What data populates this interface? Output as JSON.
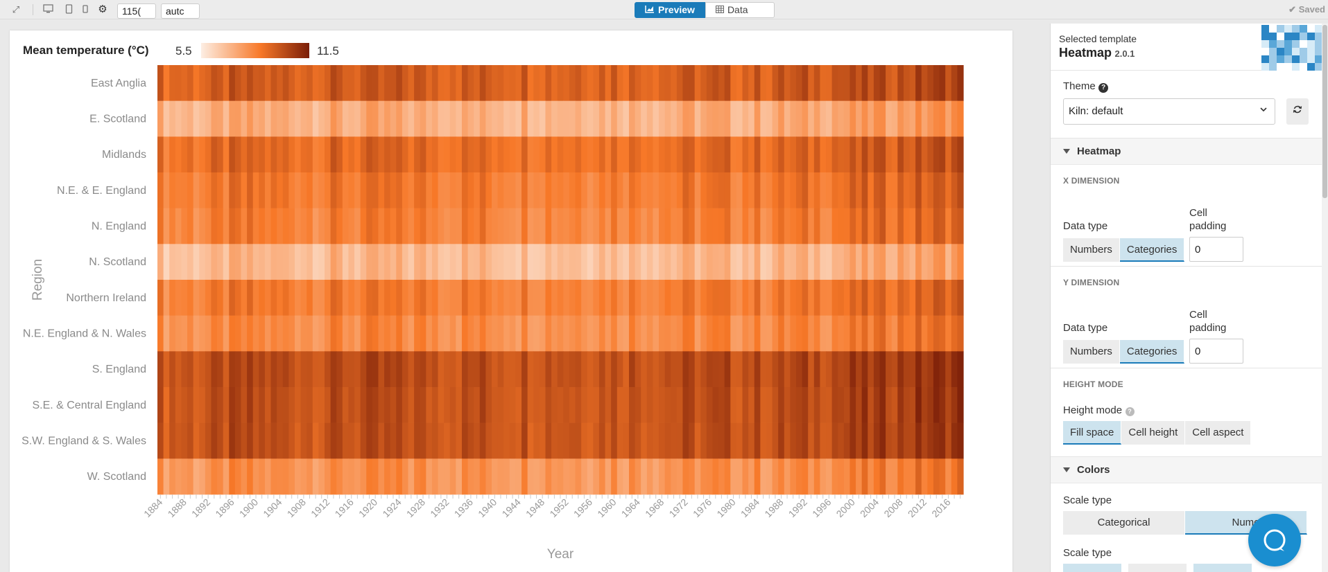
{
  "toolbar": {
    "width_value": "115(",
    "height_value": "autc",
    "tab_preview": "Preview",
    "tab_data": "Data",
    "saved_label": "Saved"
  },
  "legend": {
    "title": "Mean temperature (°C)",
    "min": "5.5",
    "max": "11.5"
  },
  "chart_data": {
    "type": "heatmap",
    "title": "",
    "xlabel": "Year",
    "ylabel": "Region",
    "color_min": 5.5,
    "color_max": 11.5,
    "color_low": "#fdeee3",
    "color_high": "#7a1e08",
    "rows": [
      "East Anglia",
      "E. Scotland",
      "Midlands",
      "N.E. & E. England",
      "N. England",
      "N. Scotland",
      "Northern Ireland",
      "N.E. England & N. Wales",
      "S. England",
      "S.E. & Central England",
      "S.W. England & S. Wales",
      "W. Scotland"
    ],
    "row_base": [
      9.6,
      7.3,
      9.2,
      8.8,
      8.6,
      7.0,
      8.7,
      8.3,
      10.1,
      10.0,
      10.0,
      8.1
    ],
    "x_start": 1884,
    "x_end": 2018,
    "x_ticks": [
      "1884",
      "1888",
      "1892",
      "1896",
      "1900",
      "1904",
      "1908",
      "1912",
      "1916",
      "1920",
      "1924",
      "1928",
      "1932",
      "1936",
      "1940",
      "1944",
      "1948",
      "1952",
      "1956",
      "1960",
      "1964",
      "1968",
      "1972",
      "1976",
      "1980",
      "1984",
      "1988",
      "1992",
      "1996",
      "2000",
      "2004",
      "2008",
      "2012",
      "2016"
    ]
  },
  "panel": {
    "selected_template_label": "Selected template",
    "template_name": "Heatmap",
    "template_version": "2.0.1",
    "theme_label": "Theme",
    "theme_value": "Kiln: default",
    "section_heatmap": "Heatmap",
    "x_dimension": "X DIMENSION",
    "y_dimension": "Y DIMENSION",
    "data_type_label": "Data type",
    "cell_padding_label": "Cell padding",
    "btn_numbers": "Numbers",
    "btn_categories": "Categories",
    "x_cell_padding": "0",
    "y_cell_padding": "0",
    "height_mode_head": "HEIGHT MODE",
    "height_mode_label": "Height mode",
    "btn_fill_space": "Fill space",
    "btn_cell_height": "Cell height",
    "btn_cell_aspect": "Cell aspect",
    "section_colors": "Colors",
    "scale_type_label": "Scale type",
    "btn_categorical": "Categorical",
    "btn_numerical": "Nume",
    "scale_type_label_2": "Scale type"
  },
  "colors": {
    "accent": "#1a7bb9",
    "help_bubble": "#1a8ed0"
  }
}
